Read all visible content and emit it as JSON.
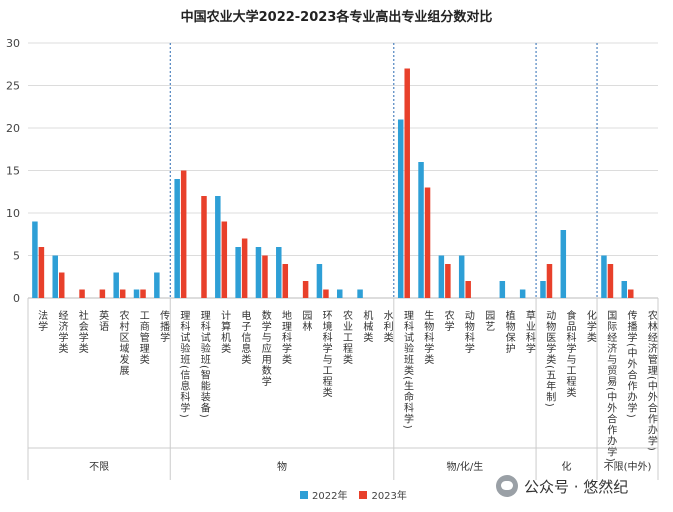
{
  "chart_data": {
    "type": "bar",
    "title": "中国农业大学2022-2023各专业高出专业组分数对比",
    "ylim": [
      0,
      30
    ],
    "yticks": [
      0,
      5,
      10,
      15,
      20,
      25,
      30
    ],
    "grid": true,
    "legend_position": "bottom",
    "series": [
      {
        "name": "2022年",
        "color": "#2e9fd6"
      },
      {
        "name": "2023年",
        "color": "#e8402b"
      }
    ],
    "categories": [
      {
        "label": "法学",
        "v2022": 9,
        "v2023": 6,
        "group": 0
      },
      {
        "label": "经济学类",
        "v2022": 5,
        "v2023": 3,
        "group": 0
      },
      {
        "label": "社会学类",
        "v2022": 0,
        "v2023": 1,
        "group": 0
      },
      {
        "label": "英语",
        "v2022": 0,
        "v2023": 1,
        "group": 0
      },
      {
        "label": "农村区域发展",
        "v2022": 3,
        "v2023": 1,
        "group": 0
      },
      {
        "label": "工商管理类",
        "v2022": 1,
        "v2023": 1,
        "group": 0
      },
      {
        "label": "传播学",
        "v2022": 3,
        "v2023": 0,
        "group": 0
      },
      {
        "label": "理科试验班(信息科学)",
        "v2022": 14,
        "v2023": 15,
        "group": 1
      },
      {
        "label": "理科试验班(智能装备)",
        "v2022": 0,
        "v2023": 12,
        "group": 1
      },
      {
        "label": "计算机类",
        "v2022": 12,
        "v2023": 9,
        "group": 1
      },
      {
        "label": "电子信息类",
        "v2022": 6,
        "v2023": 7,
        "group": 1
      },
      {
        "label": "数学与应用数学",
        "v2022": 6,
        "v2023": 5,
        "group": 1
      },
      {
        "label": "地理科学类",
        "v2022": 6,
        "v2023": 4,
        "group": 1
      },
      {
        "label": "园林",
        "v2022": 0,
        "v2023": 2,
        "group": 1
      },
      {
        "label": "环境科学与工程类",
        "v2022": 4,
        "v2023": 1,
        "group": 1
      },
      {
        "label": "农业工程类",
        "v2022": 1,
        "v2023": 0,
        "group": 1
      },
      {
        "label": "机械类",
        "v2022": 1,
        "v2023": 0,
        "group": 1
      },
      {
        "label": "水利类",
        "v2022": 0,
        "v2023": 0,
        "group": 1
      },
      {
        "label": "理科试验班类(生命科学)",
        "v2022": 21,
        "v2023": 27,
        "group": 2
      },
      {
        "label": "生物科学类",
        "v2022": 16,
        "v2023": 13,
        "group": 2
      },
      {
        "label": "农学",
        "v2022": 5,
        "v2023": 4,
        "group": 2
      },
      {
        "label": "动物科学",
        "v2022": 5,
        "v2023": 2,
        "group": 2
      },
      {
        "label": "园艺",
        "v2022": 0,
        "v2023": 0,
        "group": 2
      },
      {
        "label": "植物保护",
        "v2022": 2,
        "v2023": 0,
        "group": 2
      },
      {
        "label": "草业科学",
        "v2022": 1,
        "v2023": 0,
        "group": 2
      },
      {
        "label": "动物医学类(五年制)",
        "v2022": 2,
        "v2023": 4,
        "group": 3
      },
      {
        "label": "食品科学与工程类",
        "v2022": 8,
        "v2023": 0,
        "group": 3
      },
      {
        "label": "化学类",
        "v2022": 0,
        "v2023": 0,
        "group": 3
      },
      {
        "label": "国际经济与贸易(中外合作办学)",
        "v2022": 5,
        "v2023": 4,
        "group": 4
      },
      {
        "label": "传播学(中外合作办学)",
        "v2022": 2,
        "v2023": 1,
        "group": 4
      },
      {
        "label": "农林经济管理(中外合作办学)",
        "v2022": 0,
        "v2023": 0,
        "group": 4
      }
    ],
    "groups": [
      "不限",
      "物",
      "物/化/生",
      "化",
      "不限(中外)"
    ]
  },
  "watermark": {
    "text": "公众号 · 悠然纪"
  }
}
